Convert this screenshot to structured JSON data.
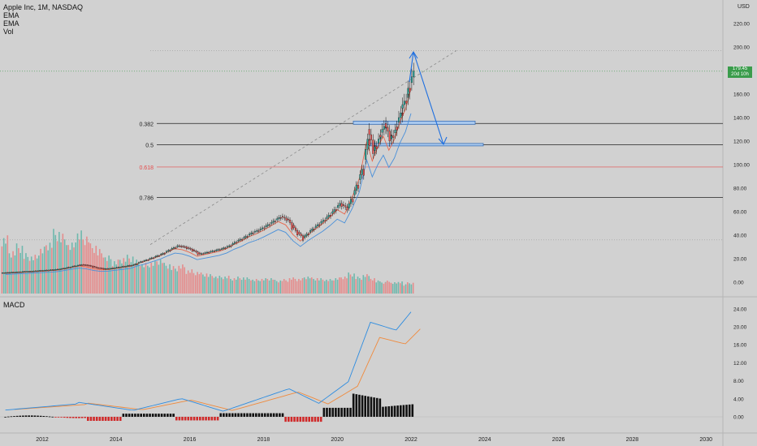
{
  "header": {
    "symbol": "Apple Inc, 1M, NASDAQ",
    "indicator_1": "EMA",
    "indicator_2": "EMA",
    "indicator_3": "Vol",
    "currency": "USD",
    "lower_pane_title": "MACD"
  },
  "price_tag": {
    "price": "179.45",
    "countdown": "20d 10h"
  },
  "colors": {
    "up": "#26a69a",
    "down": "#ef5350",
    "volume_up": "#6fb8ad",
    "volume_down": "#e58c8c",
    "ema_fast": "#e8674d",
    "ema_slow": "#4a90d9",
    "macd_line": "#2d8ce0",
    "signal_line": "#f08a3c",
    "projection": "#1e6fe0",
    "fib_highlight": "#e54b4b"
  },
  "chart_data": {
    "type": "candlestick",
    "x_ticks": [
      "2012",
      "2014",
      "2016",
      "2018",
      "2020",
      "2022",
      "2024",
      "2026",
      "2028",
      "2030"
    ],
    "price_axis": {
      "range": [
        -10,
        230
      ],
      "ticks": [
        "220.00",
        "200.00",
        "180.00",
        "160.00",
        "140.00",
        "120.00",
        "100.00",
        "80.00",
        "60.00",
        "40.00",
        "20.00",
        "0.00"
      ]
    },
    "fib_levels": [
      {
        "label": "0.382",
        "price": 135
      },
      {
        "label": "0.5",
        "price": 117
      },
      {
        "label": "0.618",
        "price": 98
      },
      {
        "label": "0.786",
        "price": 72
      }
    ],
    "last_price": 179.45,
    "candles": [
      [
        2011.0,
        8.0,
        8.3
      ],
      [
        2011.2,
        8.3,
        8.6
      ],
      [
        2011.4,
        8.6,
        9.0
      ],
      [
        2011.6,
        9.0,
        9.3
      ],
      [
        2011.8,
        9.3,
        9.8
      ],
      [
        2012.0,
        9.8,
        10.2
      ],
      [
        2012.2,
        10.2,
        10.6
      ],
      [
        2012.4,
        10.6,
        11.2
      ],
      [
        2012.6,
        11.2,
        12.4
      ],
      [
        2012.8,
        12.4,
        13.8
      ],
      [
        2013.0,
        13.8,
        15.0
      ],
      [
        2013.2,
        15.0,
        14.2
      ],
      [
        2013.4,
        14.2,
        12.4
      ],
      [
        2013.6,
        12.4,
        11.5
      ],
      [
        2013.8,
        11.5,
        11.8
      ],
      [
        2014.0,
        11.8,
        12.8
      ],
      [
        2014.2,
        12.8,
        13.8
      ],
      [
        2014.4,
        13.8,
        14.8
      ],
      [
        2014.6,
        14.8,
        17.5
      ],
      [
        2014.8,
        17.5,
        19.5
      ],
      [
        2015.0,
        19.5,
        22.0
      ],
      [
        2015.2,
        22.0,
        24.5
      ],
      [
        2015.4,
        24.5,
        28.0
      ],
      [
        2015.6,
        28.0,
        31.0
      ],
      [
        2015.8,
        31.0,
        30.0
      ],
      [
        2016.0,
        30.0,
        27.5
      ],
      [
        2016.2,
        27.5,
        24.0
      ],
      [
        2016.4,
        24.0,
        25.5
      ],
      [
        2016.6,
        25.5,
        27.0
      ],
      [
        2016.8,
        27.0,
        28.5
      ],
      [
        2017.0,
        28.5,
        31.0
      ],
      [
        2017.2,
        31.0,
        35.0
      ],
      [
        2017.4,
        35.0,
        38.0
      ],
      [
        2017.6,
        38.0,
        42.0
      ],
      [
        2017.8,
        42.0,
        44.5
      ],
      [
        2018.0,
        44.5,
        48.0
      ],
      [
        2018.2,
        48.0,
        52.0
      ],
      [
        2018.4,
        52.0,
        56.0
      ],
      [
        2018.6,
        56.0,
        53.0
      ],
      [
        2018.8,
        53.0,
        44.0
      ],
      [
        2019.0,
        44.0,
        38.0
      ],
      [
        2019.2,
        38.0,
        44.0
      ],
      [
        2019.4,
        44.0,
        49.0
      ],
      [
        2019.6,
        49.0,
        54.0
      ],
      [
        2019.8,
        54.0,
        60.0
      ],
      [
        2020.0,
        60.0,
        67.0
      ],
      [
        2020.2,
        67.0,
        63.0
      ],
      [
        2020.4,
        63.0,
        78.0
      ],
      [
        2020.6,
        78.0,
        96.0
      ],
      [
        2020.8,
        96.0,
        130.0
      ],
      [
        2020.95,
        130.0,
        112.0
      ],
      [
        2021.1,
        112.0,
        125.0
      ],
      [
        2021.25,
        125.0,
        135.0
      ],
      [
        2021.4,
        135.0,
        122.0
      ],
      [
        2021.55,
        122.0,
        132.0
      ],
      [
        2021.7,
        132.0,
        148.0
      ],
      [
        2021.85,
        148.0,
        160.0
      ],
      [
        2022.0,
        160.0,
        179.45
      ]
    ],
    "volume": [
      0.72,
      0.55,
      0.62,
      0.5,
      0.48,
      0.58,
      0.66,
      0.8,
      0.74,
      0.63,
      0.78,
      0.74,
      0.62,
      0.55,
      0.47,
      0.42,
      0.46,
      0.48,
      0.42,
      0.38,
      0.4,
      0.44,
      0.38,
      0.34,
      0.36,
      0.3,
      0.28,
      0.26,
      0.24,
      0.22,
      0.22,
      0.2,
      0.21,
      0.2,
      0.18,
      0.19,
      0.2,
      0.17,
      0.18,
      0.2,
      0.19,
      0.22,
      0.2,
      0.19,
      0.18,
      0.2,
      0.22,
      0.26,
      0.21,
      0.24,
      0.19,
      0.17,
      0.15,
      0.16,
      0.14,
      0.15,
      0.12,
      0.14
    ],
    "macd": {
      "range": [
        -3,
        25
      ],
      "ticks": [
        "24.00",
        "20.00",
        "16.00",
        "12.00",
        "8.00",
        "4.00",
        "0.00"
      ]
    }
  }
}
